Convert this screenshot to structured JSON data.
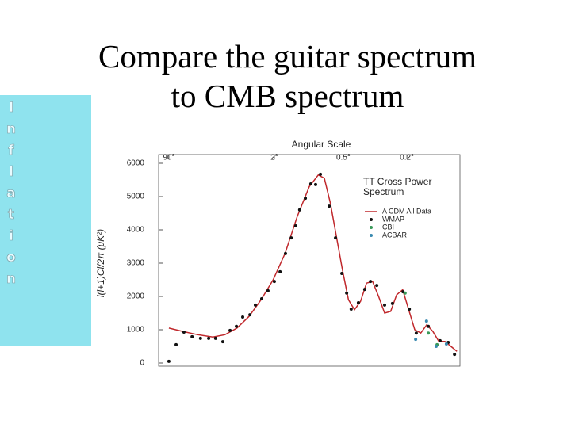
{
  "slide": {
    "title": [
      "Compare the guitar spectrum",
      "to CMB spectrum"
    ],
    "sidebar_letters": [
      "I",
      "n",
      "f",
      "l",
      "a",
      "t",
      "i",
      "o",
      "n"
    ]
  },
  "chart_data": {
    "type": "scatter",
    "x_title": "Angular Scale",
    "y_title": "l(l+1)Cl/2π (μK²)",
    "legend_title": [
      "TT Cross Power",
      "Spectrum"
    ],
    "xlim": [
      0,
      100
    ],
    "xticks": [
      {
        "value": 3.4,
        "label": "90°"
      },
      {
        "value": 38.4,
        "label": "2°"
      },
      {
        "value": 61.3,
        "label": "0.5°"
      },
      {
        "value": 82.4,
        "label": "0.2°"
      }
    ],
    "ylim": [
      0,
      6000
    ],
    "yticks": [
      0,
      1000,
      2000,
      3000,
      4000,
      5000,
      6000
    ],
    "series": [
      {
        "name": "Λ CDM All Data",
        "color": "#c0282c",
        "style": "line",
        "x": [
          3.4,
          8,
          13,
          18,
          22,
          26,
          30,
          34,
          38,
          42,
          46,
          50,
          53,
          55,
          57,
          59,
          61,
          63,
          65,
          67,
          69,
          71,
          73,
          75,
          77,
          79,
          81,
          83,
          85,
          87,
          89,
          91,
          93,
          95,
          97,
          99
        ],
        "values": [
          1050,
          950,
          850,
          780,
          850,
          1050,
          1400,
          1900,
          2500,
          3300,
          4400,
          5300,
          5650,
          5550,
          4800,
          3800,
          2800,
          1900,
          1600,
          1850,
          2400,
          2450,
          2000,
          1500,
          1550,
          2050,
          2200,
          1600,
          1000,
          900,
          1150,
          950,
          650,
          650,
          500,
          350
        ]
      },
      {
        "name": "WMAP",
        "color": "#111111",
        "style": "points",
        "x": [
          3.4,
          5.8,
          8.4,
          11.1,
          13.9,
          16.6,
          18.9,
          21.3,
          23.7,
          25.8,
          27.9,
          30.3,
          32.1,
          34.2,
          36.3,
          38.4,
          40.3,
          42.1,
          44.0,
          45.5,
          46.8,
          48.7,
          50.5,
          52.1,
          53.7,
          56.6,
          58.7,
          60.8,
          62.4,
          63.9,
          66.3,
          68.4,
          70.3,
          72.4,
          75.0,
          77.6,
          81.1,
          83.2,
          85.5,
          89.5,
          93.4,
          96.1,
          98.2
        ],
        "values": [
          50,
          550,
          930,
          790,
          740,
          740,
          740,
          640,
          980,
          1100,
          1380,
          1450,
          1740,
          1930,
          2170,
          2450,
          2740,
          3290,
          3760,
          4120,
          4600,
          4950,
          5380,
          5360,
          5670,
          4710,
          3760,
          2690,
          2100,
          1620,
          1810,
          2210,
          2450,
          2330,
          1740,
          1790,
          2140,
          1620,
          900,
          1100,
          670,
          620,
          260
        ]
      },
      {
        "name": "CBI",
        "color": "#3a9a5a",
        "style": "points",
        "x": [
          81.8,
          89.5,
          92.4
        ],
        "values": [
          2100,
          900,
          550
        ]
      },
      {
        "name": "ACBAR",
        "color": "#3a8ab0",
        "style": "points",
        "x": [
          85.3,
          88.9,
          92.1,
          95.5
        ],
        "values": [
          710,
          1260,
          500,
          570
        ]
      }
    ]
  }
}
